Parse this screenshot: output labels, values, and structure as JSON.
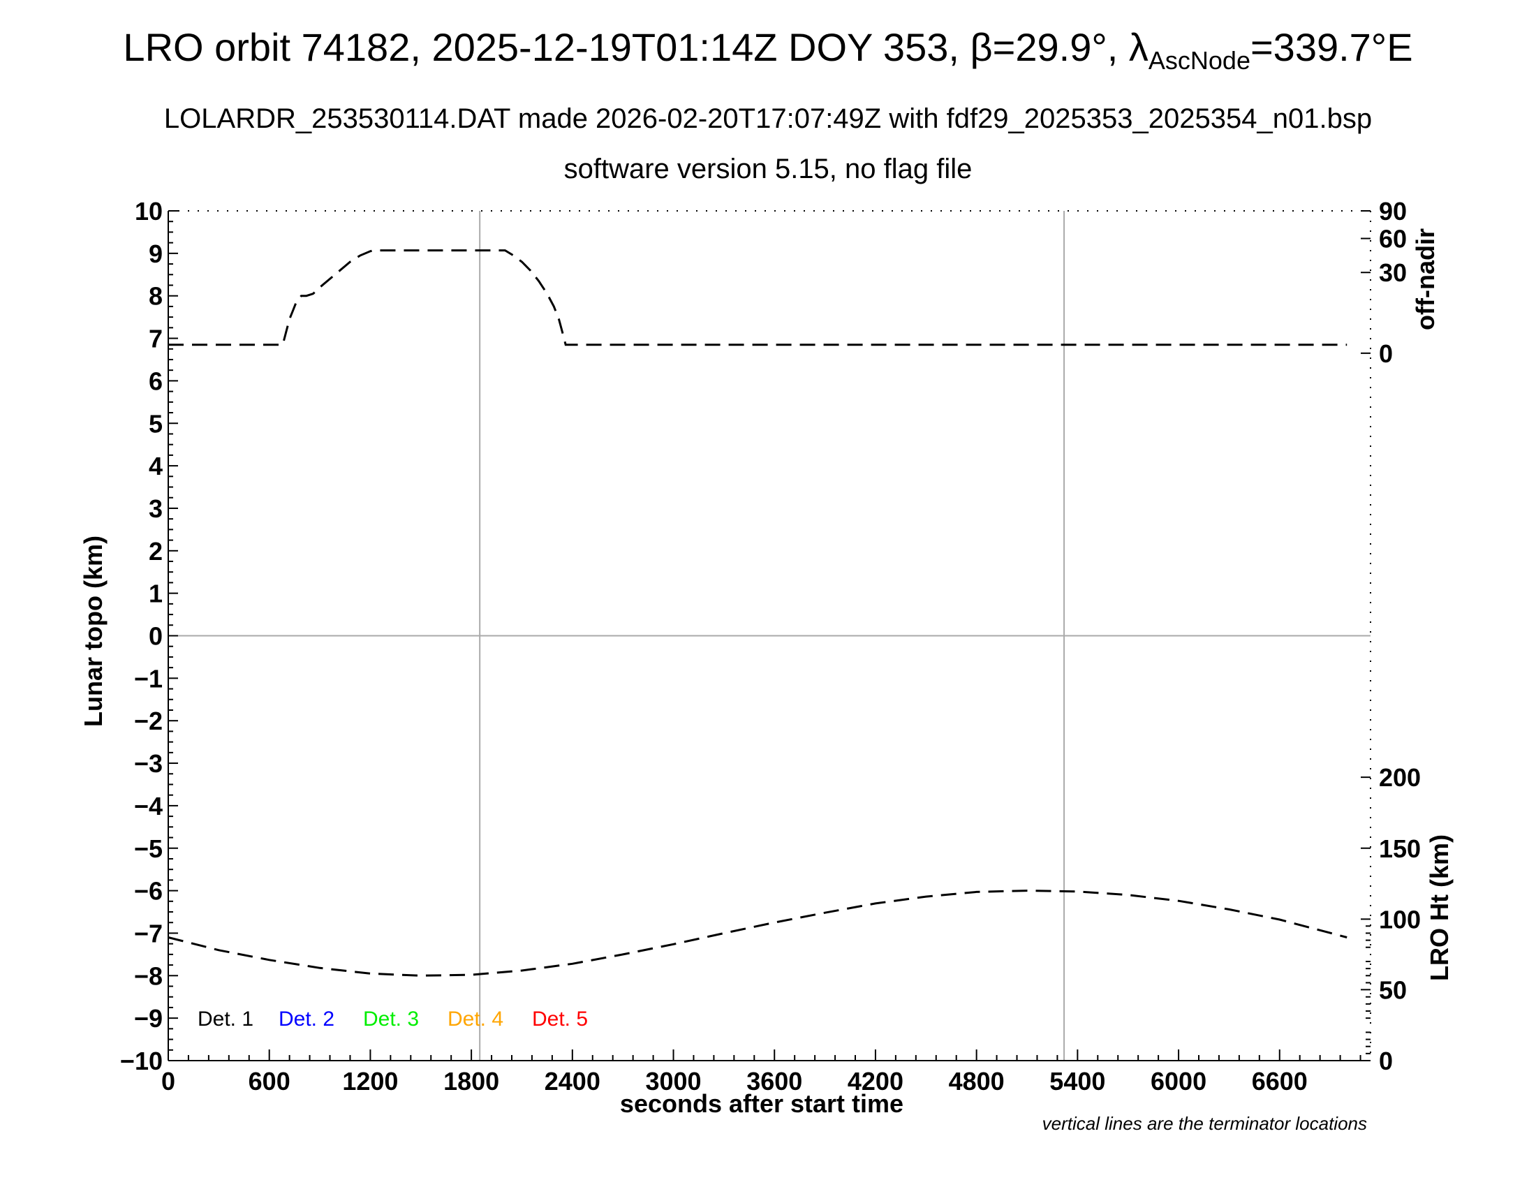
{
  "header": {
    "title_prefix": "LRO orbit 74182, 2025-12-19T01:14Z DOY 353, β=29.9°, λ",
    "title_sub": "AscNode",
    "title_suffix": "=339.7°E",
    "subtitle_1": "LOLARDR_253530114.DAT made 2026-02-20T17:07:49Z with fdf29_2025353_2025354_n01.bsp",
    "subtitle_2": "software version 5.15, no flag file"
  },
  "colors": {
    "det1": "#000000",
    "det2": "#0000ff",
    "det3": "#00ee00",
    "det4": "#ffa500",
    "det5": "#ff0000",
    "grid": "#aaaaaa"
  },
  "chart_data": {
    "type": "line",
    "xlabel": "seconds after start time",
    "ylabel_left": "Lunar topo (km)",
    "ylabel_right_top": "off-nadir",
    "ylabel_right_bottom": "LRO Ht (km)",
    "xlim": [
      0,
      7140
    ],
    "ylim_left": [
      -10,
      10
    ],
    "x_ticks": [
      0,
      600,
      1200,
      1800,
      2400,
      3000,
      3600,
      4200,
      4800,
      5400,
      6000,
      6600
    ],
    "y_ticks_left": [
      10,
      9,
      8,
      7,
      6,
      5,
      4,
      3,
      2,
      1,
      0,
      -1,
      -2,
      -3,
      -4,
      -5,
      -6,
      -7,
      -8,
      -9,
      -10
    ],
    "y_tick_labels_left": [
      "10",
      "9",
      "8",
      "7",
      "6",
      "5",
      "4",
      "3",
      "2",
      "1",
      "0",
      "−1",
      "−2",
      "−3",
      "−4",
      "−5",
      "−6",
      "−7",
      "−8",
      "−9",
      "−10"
    ],
    "right_top_ticks": [
      {
        "label": "90",
        "topo": 10.0
      },
      {
        "label": "60",
        "topo": 9.35
      },
      {
        "label": "30",
        "topo": 8.55
      },
      {
        "label": "0",
        "topo": 6.65
      }
    ],
    "right_bottom_ticks": [
      {
        "label": "200",
        "topo": -3.33
      },
      {
        "label": "150",
        "topo": -5.0
      },
      {
        "label": "100",
        "topo": -6.67
      },
      {
        "label": "50",
        "topo": -8.33
      },
      {
        "label": "0",
        "topo": -10.0
      }
    ],
    "terminator_lines_x": [
      1850,
      5320
    ],
    "zero_line_y": 0,
    "series": [
      {
        "name": "off-nadir",
        "style": "dashed",
        "x": [
          0,
          680,
          700,
          720,
          740,
          760,
          790,
          820,
          860,
          900,
          960,
          1020,
          1080,
          1140,
          1200,
          1220,
          1400,
          1600,
          1800,
          2000,
          2050,
          2100,
          2150,
          2200,
          2250,
          2290,
          2320,
          2340,
          2360,
          2400,
          3000,
          3600,
          4200,
          4800,
          5400,
          6000,
          6600,
          7000
        ],
        "y": [
          6.85,
          6.85,
          7.15,
          7.45,
          7.65,
          7.85,
          8.0,
          8.0,
          8.05,
          8.2,
          8.4,
          8.6,
          8.8,
          8.95,
          9.05,
          9.07,
          9.07,
          9.07,
          9.07,
          9.07,
          8.95,
          8.8,
          8.6,
          8.35,
          8.05,
          7.75,
          7.45,
          7.15,
          6.85,
          6.85,
          6.85,
          6.85,
          6.85,
          6.85,
          6.85,
          6.85,
          6.85,
          6.85
        ]
      },
      {
        "name": "LRO Ht",
        "style": "dashed",
        "x": [
          0,
          300,
          600,
          900,
          1200,
          1500,
          1800,
          2100,
          2400,
          2700,
          3000,
          3300,
          3600,
          3900,
          4200,
          4500,
          4800,
          5100,
          5400,
          5700,
          6000,
          6300,
          6600,
          7000
        ],
        "y": [
          -7.1,
          -7.4,
          -7.63,
          -7.82,
          -7.95,
          -8.0,
          -7.98,
          -7.88,
          -7.72,
          -7.5,
          -7.26,
          -7.0,
          -6.75,
          -6.52,
          -6.3,
          -6.14,
          -6.03,
          -6.0,
          -6.02,
          -6.1,
          -6.24,
          -6.44,
          -6.68,
          -7.1
        ]
      }
    ],
    "legend": [
      {
        "label": "Det. 1",
        "color": "#000000"
      },
      {
        "label": "Det. 2",
        "color": "#0000ff"
      },
      {
        "label": "Det. 3",
        "color": "#00ee00"
      },
      {
        "label": "Det. 4",
        "color": "#ffa500"
      },
      {
        "label": "Det. 5",
        "color": "#ff0000"
      }
    ],
    "legend_placement": "bottom-left",
    "note": "vertical lines are the terminator locations"
  }
}
